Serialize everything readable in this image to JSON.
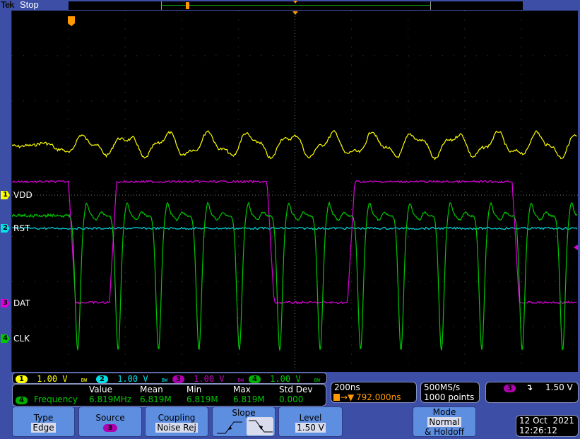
{
  "header": {
    "brand": "Tek",
    "run_state": "Stop"
  },
  "channels": [
    {
      "id": "1",
      "label": "VDD",
      "scale": "1.00 V",
      "bw": "BW",
      "color": "#ffff00"
    },
    {
      "id": "2",
      "label": "RST",
      "scale": "1.00 V",
      "bw": "BW",
      "color": "#00e0e8"
    },
    {
      "id": "3",
      "label": "DAT",
      "scale": "1.00 V",
      "bw": "BW",
      "color": "#e000e0"
    },
    {
      "id": "4",
      "label": "CLK",
      "scale": "1.00 V",
      "bw": "BW",
      "color": "#00c800"
    }
  ],
  "measurement": {
    "headers": [
      "Value",
      "Mean",
      "Min",
      "Max",
      "Std Dev"
    ],
    "channel": "4",
    "name": "Frequency",
    "values": [
      "6.819MHz",
      "6.819M",
      "6.819M",
      "6.819M",
      "0.000"
    ]
  },
  "timebase": {
    "scale": "200ns",
    "trigger_pos": "792.000ns"
  },
  "acquisition": {
    "sample_rate": "500MS/s",
    "record_length": "1000 points"
  },
  "trigger": {
    "source": "3",
    "slope": "falling",
    "level": "1.50 V"
  },
  "menu": {
    "type": {
      "title": "Type",
      "value": "Edge"
    },
    "source": {
      "title": "Source",
      "value": "3"
    },
    "coupling": {
      "title": "Coupling",
      "value": "Noise Rej"
    },
    "slope": {
      "title": "Slope",
      "selected": "falling"
    },
    "level": {
      "title": "Level",
      "value": "1.50 V"
    },
    "mode": {
      "title": "Mode",
      "value": "Normal",
      "extra": "& Holdoff"
    }
  },
  "datetime": {
    "date": "12 Oct  2021",
    "time": "12:26:12"
  },
  "colors": {
    "frame": "#3c4ea6",
    "button": "#5d8ee0",
    "trigger_marker": "#ff9900"
  }
}
